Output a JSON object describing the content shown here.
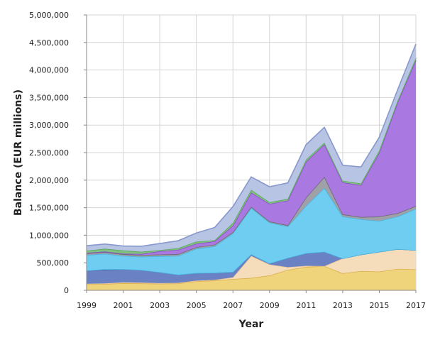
{
  "chart_data": {
    "type": "area",
    "stacked": true,
    "xlabel": "Year",
    "ylabel": "Balance (EUR millions)",
    "x": [
      1999,
      2000,
      2001,
      2002,
      2003,
      2004,
      2005,
      2006,
      2007,
      2008,
      2009,
      2010,
      2011,
      2012,
      2013,
      2014,
      2015,
      2016,
      2017
    ],
    "x_ticks": [
      "1999",
      "2001",
      "2003",
      "2005",
      "2007",
      "2009",
      "2011",
      "2013",
      "2015",
      "2017"
    ],
    "ylim": [
      0,
      5000000
    ],
    "y_ticks": [
      "0",
      "500,000",
      "1,000,000",
      "1,500,000",
      "2,000,000",
      "2,500,000",
      "3,000,000",
      "3,500,000",
      "4,000,000",
      "4,500,000",
      "5,000,000"
    ],
    "grid": true,
    "legend": "none",
    "series": [
      {
        "color": "#f0d47c",
        "stroke": "#d9b04a",
        "values": [
          110000,
          115000,
          130000,
          125000,
          120000,
          125000,
          165000,
          180000,
          205000,
          225000,
          270000,
          370000,
          425000,
          440000,
          310000,
          350000,
          340000,
          390000,
          380000
        ]
      },
      {
        "color": "#f5dcbb",
        "stroke": "#e8c49a",
        "values": [
          10000,
          10000,
          15000,
          15000,
          10000,
          10000,
          10000,
          10000,
          30000,
          400000,
          200000,
          50000,
          20000,
          0,
          270000,
          300000,
          360000,
          360000,
          350000
        ]
      },
      {
        "color": "#6a82c4",
        "stroke": "#4a62a8",
        "values": [
          240000,
          250000,
          240000,
          230000,
          200000,
          150000,
          140000,
          130000,
          100000,
          30000,
          20000,
          170000,
          230000,
          260000,
          0,
          0,
          0,
          0,
          0
        ]
      },
      {
        "color": "#6fcdf1",
        "stroke": "#4ab6e0",
        "values": [
          0,
          10000,
          0,
          0,
          0,
          0,
          0,
          0,
          0,
          0,
          0,
          0,
          0,
          0,
          0,
          0,
          0,
          0,
          0
        ]
      },
      {
        "color": "#6fcdf1",
        "stroke": "#4ab6e0",
        "values": [
          280000,
          280000,
          240000,
          240000,
          290000,
          340000,
          440000,
          480000,
          700000,
          840000,
          740000,
          570000,
          860000,
          1160000,
          760000,
          640000,
          560000,
          590000,
          750000
        ]
      },
      {
        "color": "#a0a0a8",
        "stroke": "#6a6a70",
        "values": [
          30000,
          30000,
          30000,
          30000,
          30000,
          30000,
          30000,
          30000,
          20000,
          20000,
          20000,
          20000,
          150000,
          200000,
          40000,
          40000,
          80000,
          60000,
          50000
        ]
      },
      {
        "color": "#a978e0",
        "stroke": "#8a54c8",
        "values": [
          10000,
          10000,
          10000,
          20000,
          60000,
          80000,
          60000,
          60000,
          120000,
          260000,
          320000,
          450000,
          650000,
          590000,
          580000,
          580000,
          1160000,
          2010000,
          2650000
        ]
      },
      {
        "color": "#7fbf7f",
        "stroke": "#5aa85a",
        "values": [
          40000,
          50000,
          60000,
          40000,
          20000,
          30000,
          40000,
          20000,
          50000,
          50000,
          30000,
          30000,
          40000,
          30000,
          30000,
          30000,
          40000,
          30000,
          40000
        ]
      },
      {
        "color": "#b8c4e4",
        "stroke": "#8898cc",
        "values": [
          90000,
          85000,
          80000,
          100000,
          120000,
          135000,
          155000,
          230000,
          295000,
          235000,
          280000,
          290000,
          270000,
          280000,
          280000,
          300000,
          240000,
          200000,
          250000
        ]
      }
    ]
  }
}
